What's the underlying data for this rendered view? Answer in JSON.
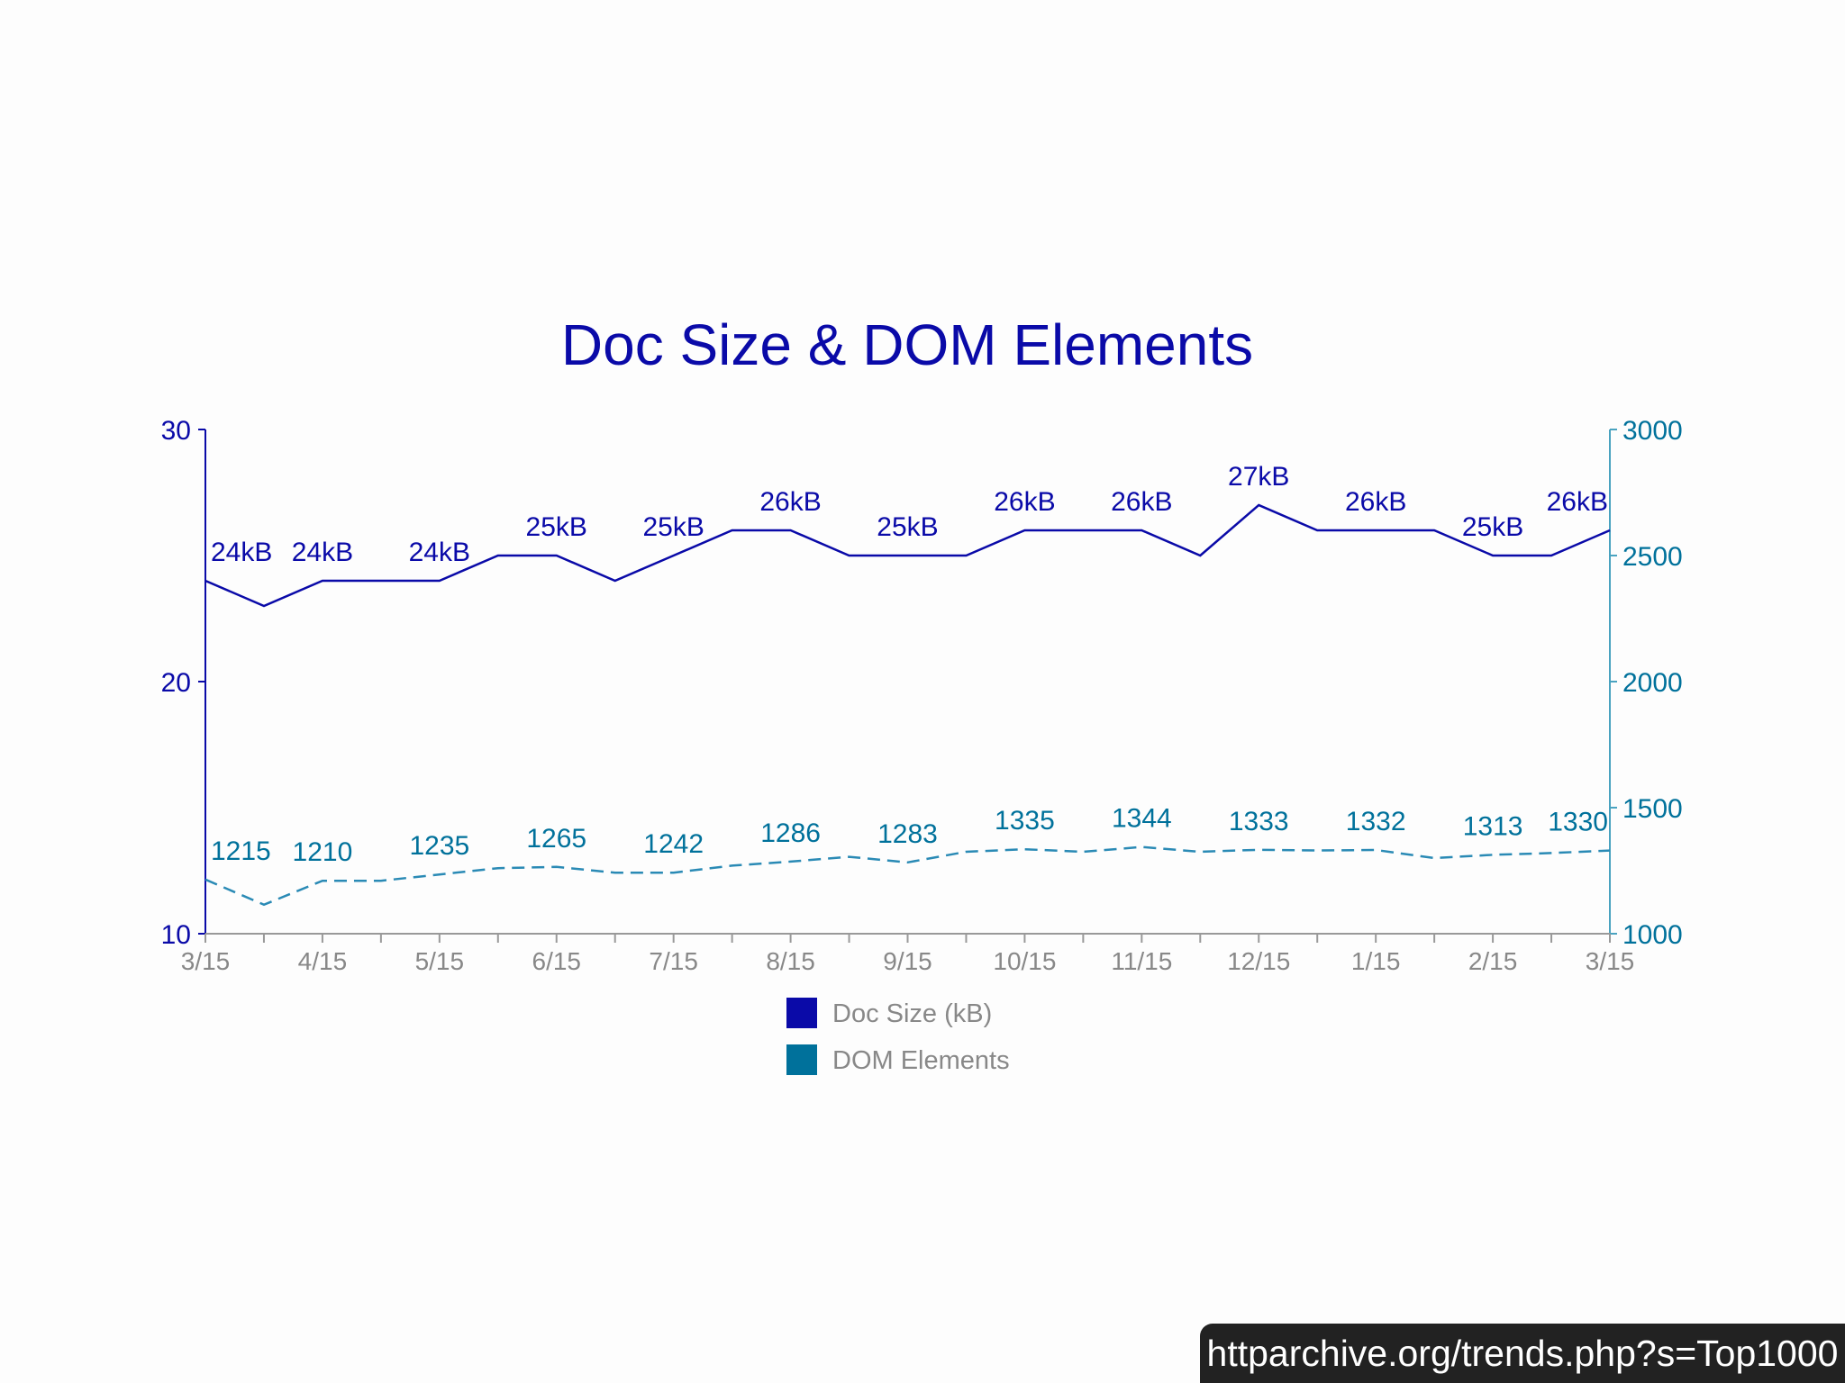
{
  "chart_data": {
    "type": "line",
    "title": "Doc Size & DOM Elements",
    "categories": [
      "3/15",
      "",
      "4/15",
      "",
      "5/15",
      "",
      "6/15",
      "",
      "7/15",
      "",
      "8/15",
      "",
      "9/15",
      "",
      "10/15",
      "",
      "11/15",
      "",
      "12/15",
      "",
      "1/15",
      "",
      "2/15",
      "",
      "3/15"
    ],
    "x_tick_labels": [
      "3/15",
      "4/15",
      "5/15",
      "6/15",
      "7/15",
      "8/15",
      "9/15",
      "10/15",
      "11/15",
      "12/15",
      "1/15",
      "2/15",
      "3/15"
    ],
    "y_left": {
      "ticks": [
        "10",
        "20",
        "30"
      ],
      "range": [
        10,
        30
      ]
    },
    "y_right": {
      "ticks": [
        "1000",
        "1500",
        "2000",
        "2500",
        "3000"
      ],
      "range": [
        1000,
        3000
      ]
    },
    "grid": false,
    "legend_position": "bottom",
    "series": [
      {
        "name": "Doc Size (kB)",
        "axis": "left",
        "color": "#0a0aa8",
        "line_style": "solid",
        "values": [
          24,
          23,
          24,
          24,
          24,
          25,
          25,
          24,
          25,
          26,
          26,
          25,
          25,
          25,
          26,
          26,
          26,
          25,
          27,
          26,
          26,
          26,
          25,
          25,
          26
        ],
        "data_labels": [
          {
            "index": 0,
            "text": "24kB"
          },
          {
            "index": 2,
            "text": "24kB"
          },
          {
            "index": 4,
            "text": "24kB"
          },
          {
            "index": 6,
            "text": "25kB"
          },
          {
            "index": 8,
            "text": "25kB"
          },
          {
            "index": 10,
            "text": "26kB"
          },
          {
            "index": 12,
            "text": "25kB"
          },
          {
            "index": 14,
            "text": "26kB"
          },
          {
            "index": 16,
            "text": "26kB"
          },
          {
            "index": 18,
            "text": "27kB"
          },
          {
            "index": 20,
            "text": "26kB"
          },
          {
            "index": 22,
            "text": "25kB"
          },
          {
            "index": 24,
            "text": "26kB"
          }
        ]
      },
      {
        "name": "DOM Elements",
        "axis": "right",
        "color": "#00719b",
        "line_style": "dashed",
        "values": [
          1215,
          1115,
          1210,
          1210,
          1235,
          1260,
          1265,
          1242,
          1242,
          1270,
          1286,
          1305,
          1283,
          1325,
          1335,
          1325,
          1344,
          1325,
          1333,
          1330,
          1332,
          1300,
          1313,
          1320,
          1330
        ],
        "data_labels": [
          {
            "index": 0,
            "text": "1215"
          },
          {
            "index": 2,
            "text": "1210"
          },
          {
            "index": 4,
            "text": "1235"
          },
          {
            "index": 6,
            "text": "1265"
          },
          {
            "index": 8,
            "text": "1242"
          },
          {
            "index": 10,
            "text": "1286"
          },
          {
            "index": 12,
            "text": "1283"
          },
          {
            "index": 14,
            "text": "1335"
          },
          {
            "index": 16,
            "text": "1344"
          },
          {
            "index": 18,
            "text": "1333"
          },
          {
            "index": 20,
            "text": "1332"
          },
          {
            "index": 22,
            "text": "1313"
          },
          {
            "index": 24,
            "text": "1330"
          }
        ]
      }
    ]
  },
  "legend": [
    {
      "label": "Doc Size (kB)",
      "color": "#0a0aa8"
    },
    {
      "label": "DOM Elements",
      "color": "#00719b"
    }
  ],
  "source": {
    "text": "httparchive.org/trends.php?s=Top1000"
  }
}
